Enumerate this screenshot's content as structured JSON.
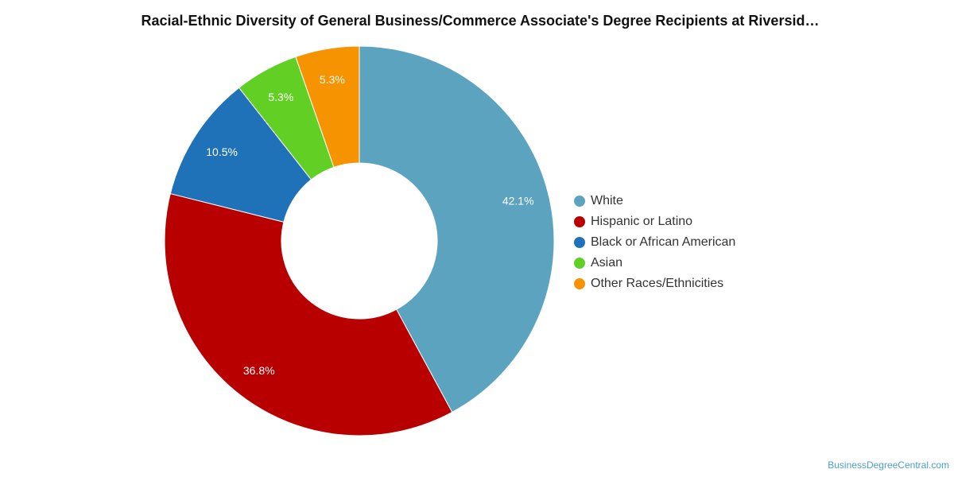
{
  "chart_data": {
    "type": "pie",
    "title": "Racial-Ethnic Diversity of General Business/Commerce Associate's Degree Recipients at Riversid…",
    "donut": true,
    "legend_position": "right",
    "slices": [
      {
        "name": "White",
        "value": 42.1,
        "label": "42.1%",
        "color": "#5ca3bf"
      },
      {
        "name": "Hispanic or Latino",
        "value": 36.8,
        "label": "36.8%",
        "color": "#b80000"
      },
      {
        "name": "Black or African American",
        "value": 10.5,
        "label": "10.5%",
        "color": "#1f72b8"
      },
      {
        "name": "Asian",
        "value": 5.3,
        "label": "5.3%",
        "color": "#62cf25"
      },
      {
        "name": "Other Races/Ethnicities",
        "value": 5.3,
        "label": "5.3%",
        "color": "#f59300"
      }
    ]
  },
  "credit": "BusinessDegreeCentral.com"
}
